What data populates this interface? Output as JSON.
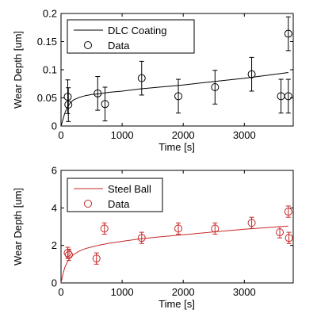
{
  "chart_data": [
    {
      "type": "scatter",
      "color": "#000000",
      "xlabel": "Time [s]",
      "ylabel": "Wear Depth [um]",
      "xlim": [
        0,
        3800
      ],
      "ylim": [
        0,
        0.2
      ],
      "xticks": [
        0,
        1000,
        2000,
        3000
      ],
      "xtick_labels": [
        "0",
        "1000",
        "2000",
        "3000"
      ],
      "yticks": [
        0,
        0.05,
        0.1,
        0.15,
        0.2
      ],
      "ytick_labels": [
        "0",
        "0.05",
        "0.1",
        "0.15",
        "0.2"
      ],
      "legend_position": "top-left",
      "grid": false,
      "series": [
        {
          "name": "DLC Coating",
          "kind": "fit-line",
          "x": [
            0,
            30,
            60,
            100,
            150,
            200,
            300,
            400,
            500,
            600,
            800,
            1000,
            1300,
            1600,
            2000,
            2500,
            3000,
            3500,
            3720
          ],
          "y": [
            0,
            0.011,
            0.022,
            0.033,
            0.041,
            0.046,
            0.051,
            0.054,
            0.056,
            0.057,
            0.06,
            0.062,
            0.066,
            0.069,
            0.073,
            0.079,
            0.085,
            0.092,
            0.095
          ]
        },
        {
          "name": "Data",
          "kind": "points",
          "x": [
            110,
            120,
            600,
            720,
            1320,
            1920,
            2520,
            3120,
            3600,
            3720,
            3720
          ],
          "y": [
            0.052,
            0.038,
            0.058,
            0.039,
            0.085,
            0.053,
            0.069,
            0.092,
            0.053,
            0.164,
            0.053
          ],
          "err": [
            0.03,
            0.03,
            0.03,
            0.03,
            0.03,
            0.03,
            0.03,
            0.03,
            0.03,
            0.03,
            0.03
          ]
        }
      ]
    },
    {
      "type": "scatter",
      "color": "#c62828",
      "xlabel": "Time [s]",
      "ylabel": "Wear Depth [um]",
      "xlim": [
        0,
        3800
      ],
      "ylim": [
        0,
        6
      ],
      "xticks": [
        0,
        1000,
        2000,
        3000
      ],
      "xtick_labels": [
        "0",
        "1000",
        "2000",
        "3000"
      ],
      "yticks": [
        0,
        2,
        4,
        6
      ],
      "ytick_labels": [
        "0",
        "2",
        "4",
        "6"
      ],
      "legend_position": "top-left",
      "grid": false,
      "series": [
        {
          "name": "Steel Ball",
          "kind": "fit-line",
          "x": [
            0,
            30,
            60,
            100,
            150,
            200,
            300,
            400,
            500,
            600,
            800,
            1000,
            1300,
            1600,
            2000,
            2500,
            3000,
            3500,
            3720
          ],
          "y": [
            0,
            0.45,
            0.8,
            1.1,
            1.35,
            1.5,
            1.7,
            1.83,
            1.92,
            2.0,
            2.12,
            2.22,
            2.35,
            2.45,
            2.57,
            2.72,
            2.86,
            2.98,
            3.03
          ]
        },
        {
          "name": "Data",
          "kind": "points",
          "x": [
            110,
            130,
            580,
            710,
            1320,
            1920,
            2520,
            3120,
            3580,
            3720,
            3730
          ],
          "y": [
            1.6,
            1.5,
            1.3,
            2.9,
            2.4,
            2.9,
            2.9,
            3.2,
            2.7,
            3.8,
            2.4
          ],
          "err": [
            0.3,
            0.3,
            0.3,
            0.3,
            0.3,
            0.3,
            0.3,
            0.3,
            0.3,
            0.3,
            0.3
          ]
        }
      ]
    }
  ]
}
